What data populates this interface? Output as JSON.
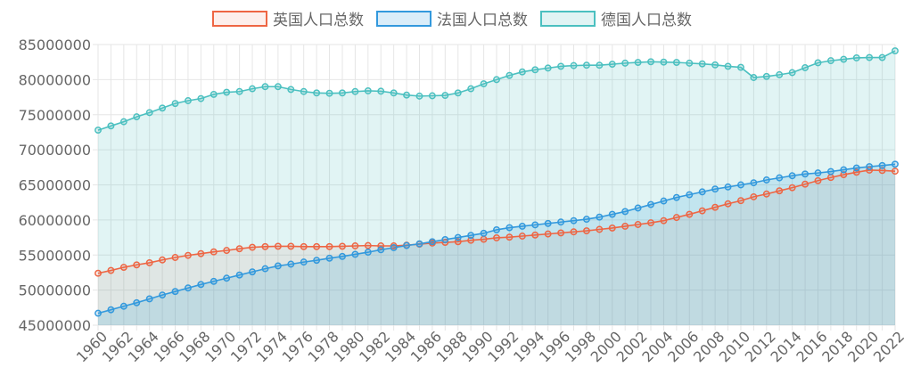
{
  "chart_data": {
    "type": "area",
    "title": "",
    "xlabel": "",
    "ylabel": "",
    "ylim": [
      45000000,
      85000000
    ],
    "yticks": [
      45000000,
      50000000,
      55000000,
      60000000,
      65000000,
      70000000,
      75000000,
      80000000,
      85000000
    ],
    "grid": true,
    "legend_position": "top-center",
    "x": [
      1960,
      1961,
      1962,
      1963,
      1964,
      1965,
      1966,
      1967,
      1968,
      1969,
      1970,
      1971,
      1972,
      1973,
      1974,
      1975,
      1976,
      1977,
      1978,
      1979,
      1980,
      1981,
      1982,
      1983,
      1984,
      1985,
      1986,
      1987,
      1988,
      1989,
      1990,
      1991,
      1992,
      1993,
      1994,
      1995,
      1996,
      1997,
      1998,
      1999,
      2000,
      2001,
      2002,
      2003,
      2004,
      2005,
      2006,
      2007,
      2008,
      2009,
      2010,
      2011,
      2012,
      2013,
      2014,
      2015,
      2016,
      2017,
      2018,
      2019,
      2020,
      2021,
      2022
    ],
    "x_tick_labels": [
      "1960",
      "1962",
      "1964",
      "1966",
      "1968",
      "1970",
      "1972",
      "1974",
      "1976",
      "1978",
      "1980",
      "1982",
      "1984",
      "1986",
      "1988",
      "1990",
      "1992",
      "1994",
      "1996",
      "1998",
      "2000",
      "2002",
      "2004",
      "2006",
      "2008",
      "2010",
      "2012",
      "2014",
      "2016",
      "2018",
      "2020",
      "2022"
    ],
    "series": [
      {
        "name": "英国人口总数",
        "color": "#ee6644",
        "fill": "rgba(238,102,68,0.10)",
        "values": [
          52400000,
          52800000,
          53250000,
          53600000,
          53900000,
          54300000,
          54650000,
          54950000,
          55200000,
          55450000,
          55650000,
          55900000,
          56100000,
          56200000,
          56250000,
          56250000,
          56200000,
          56200000,
          56200000,
          56250000,
          56300000,
          56350000,
          56300000,
          56300000,
          56400000,
          56550000,
          56700000,
          56800000,
          56900000,
          57100000,
          57250000,
          57450000,
          57550000,
          57700000,
          57850000,
          58000000,
          58150000,
          58300000,
          58450000,
          58650000,
          58850000,
          59100000,
          59350000,
          59600000,
          59900000,
          60350000,
          60800000,
          61300000,
          61800000,
          62300000,
          62750000,
          63300000,
          63700000,
          64150000,
          64600000,
          65100000,
          65600000,
          66050000,
          66450000,
          66800000,
          67100000,
          67050000,
          66950000
        ]
      },
      {
        "name": "法国人口总数",
        "color": "#3399dd",
        "fill": "rgba(51,153,221,0.18)",
        "values": [
          46700000,
          47200000,
          47700000,
          48200000,
          48750000,
          49300000,
          49800000,
          50300000,
          50800000,
          51250000,
          51700000,
          52150000,
          52600000,
          53050000,
          53450000,
          53700000,
          54000000,
          54250000,
          54550000,
          54800000,
          55100000,
          55400000,
          55750000,
          56050000,
          56350000,
          56600000,
          56900000,
          57200000,
          57500000,
          57800000,
          58100000,
          58600000,
          58900000,
          59100000,
          59300000,
          59500000,
          59700000,
          59900000,
          60100000,
          60400000,
          60800000,
          61200000,
          61700000,
          62200000,
          62700000,
          63200000,
          63600000,
          64000000,
          64400000,
          64700000,
          65000000,
          65300000,
          65700000,
          66000000,
          66300000,
          66550000,
          66700000,
          66900000,
          67150000,
          67400000,
          67600000,
          67750000,
          67950000
        ]
      },
      {
        "name": "德国人口总数",
        "color": "#4bc0c0",
        "fill": "rgba(75,192,192,0.17)",
        "values": [
          72800000,
          73400000,
          74000000,
          74700000,
          75300000,
          75950000,
          76600000,
          77000000,
          77300000,
          77900000,
          78200000,
          78300000,
          78700000,
          79000000,
          79000000,
          78600000,
          78300000,
          78100000,
          78050000,
          78100000,
          78300000,
          78400000,
          78350000,
          78100000,
          77800000,
          77650000,
          77700000,
          77750000,
          78100000,
          78700000,
          79400000,
          80000000,
          80600000,
          81100000,
          81400000,
          81650000,
          81900000,
          82000000,
          82050000,
          82050000,
          82200000,
          82350000,
          82450000,
          82550000,
          82500000,
          82450000,
          82350000,
          82250000,
          82100000,
          81900000,
          81750000,
          80300000,
          80450000,
          80700000,
          81000000,
          81700000,
          82400000,
          82700000,
          82900000,
          83100000,
          83150000,
          83150000,
          84100000
        ]
      }
    ]
  }
}
